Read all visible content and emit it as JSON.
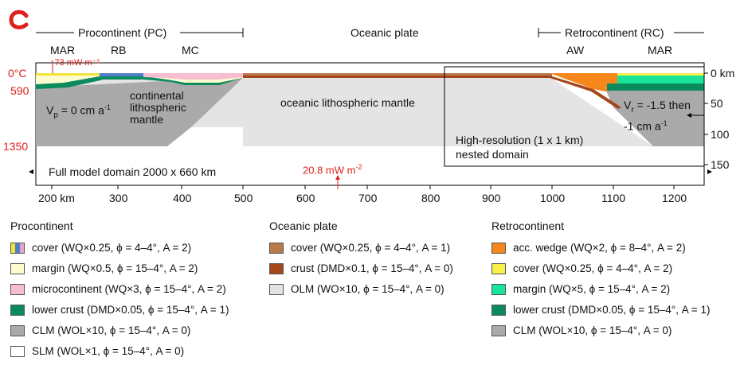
{
  "panel_label": "c",
  "regions": {
    "procontinent": "Procontinent (PC)",
    "oceanic": "Oceanic plate",
    "retrocontinent": "Retrocontinent (RC)"
  },
  "sub_labels": {
    "mar_left": "MAR",
    "rb": "RB",
    "mc": "MC",
    "aw": "AW",
    "mar_right": "MAR"
  },
  "heat_flux_top": "↑73 mW m⁻²",
  "heat_flux_bottom": "20.8 mW m",
  "heat_flux_exp": "-2",
  "temperatures": {
    "t0": "0°C",
    "t590": "590",
    "t1350": "1350"
  },
  "depth_ticks": [
    "0 km",
    "50",
    "100",
    "150"
  ],
  "x_ticks": [
    "200 km",
    "300",
    "400",
    "500",
    "600",
    "700",
    "800",
    "900",
    "1000",
    "1100",
    "1200"
  ],
  "vp_label": "V",
  "vp_sub": "p",
  "vp_value": " = 0 cm a",
  "vp_exp": "-1",
  "vr_label": "V",
  "vr_sub": "r",
  "vr_value": " = -1.5 then",
  "vr_value2": "-1  cm a",
  "vr_exp": "-1",
  "continental_lm": [
    "continental",
    "lithospheric",
    "mantle"
  ],
  "oceanic_lm": "oceanic lithospheric mantle",
  "nested_domain": [
    "High-resolution (1 x 1 km)",
    "nested domain"
  ],
  "full_domain": "Full model domain 2000 x 660 km",
  "legend": {
    "procontinent": {
      "title": "Procontinent",
      "items": [
        {
          "label": "cover (WQ×0.25, ϕ = 4–4°, A = 2)",
          "colors": [
            "#f2e23a",
            "#4e7fc8",
            "#e7a3c3"
          ]
        },
        {
          "label": "margin (WQ×0.5, ϕ = 15–4°, A = 2)",
          "colors": [
            "#fdfbd0"
          ]
        },
        {
          "label": "microcontinent (WQ×3, ϕ = 15–4°, A = 2)",
          "colors": [
            "#f7bdd0"
          ]
        },
        {
          "label": "lower crust (DMD×0.05, ϕ = 15–4°, A = 1)",
          "colors": [
            "#0b8a5e"
          ]
        },
        {
          "label": "CLM (WOL×10, ϕ = 15–4°, A = 0)",
          "colors": [
            "#aaaaaa"
          ]
        },
        {
          "label": "SLM (WOL×1, ϕ = 15–4°, A = 0)",
          "colors": [
            "#ffffff"
          ]
        }
      ]
    },
    "oceanic": {
      "title": "Oceanic plate",
      "items": [
        {
          "label": "cover (WQ×0.25, ϕ = 4–4°, A = 1)",
          "colors": [
            "#b87a4b"
          ]
        },
        {
          "label": "crust (DMD×0.1, ϕ = 15–4°, A = 0)",
          "colors": [
            "#a6461c"
          ]
        },
        {
          "label": "OLM (WO×10, ϕ = 15–4°, A = 0)",
          "colors": [
            "#e4e4e4"
          ]
        }
      ]
    },
    "retrocontinent": {
      "title": "Retrocontinent",
      "items": [
        {
          "label": "acc. wedge (WQ×2, ϕ = 8–4°, A = 2)",
          "colors": [
            "#f7861b"
          ]
        },
        {
          "label": "cover (WQ×0.25, ϕ = 4–4°, A = 2)",
          "colors": [
            "#f7f14a"
          ]
        },
        {
          "label": "margin (WQ×5, ϕ = 15–4°, A = 2)",
          "colors": [
            "#19e59a"
          ]
        },
        {
          "label": "lower crust (DMD×0.05, ϕ = 15–4°, A = 1)",
          "colors": [
            "#0b8a5e"
          ]
        },
        {
          "label": "CLM (WOL×10, ϕ = 15–4°, A = 0)",
          "colors": [
            "#aaaaaa"
          ]
        }
      ]
    }
  }
}
